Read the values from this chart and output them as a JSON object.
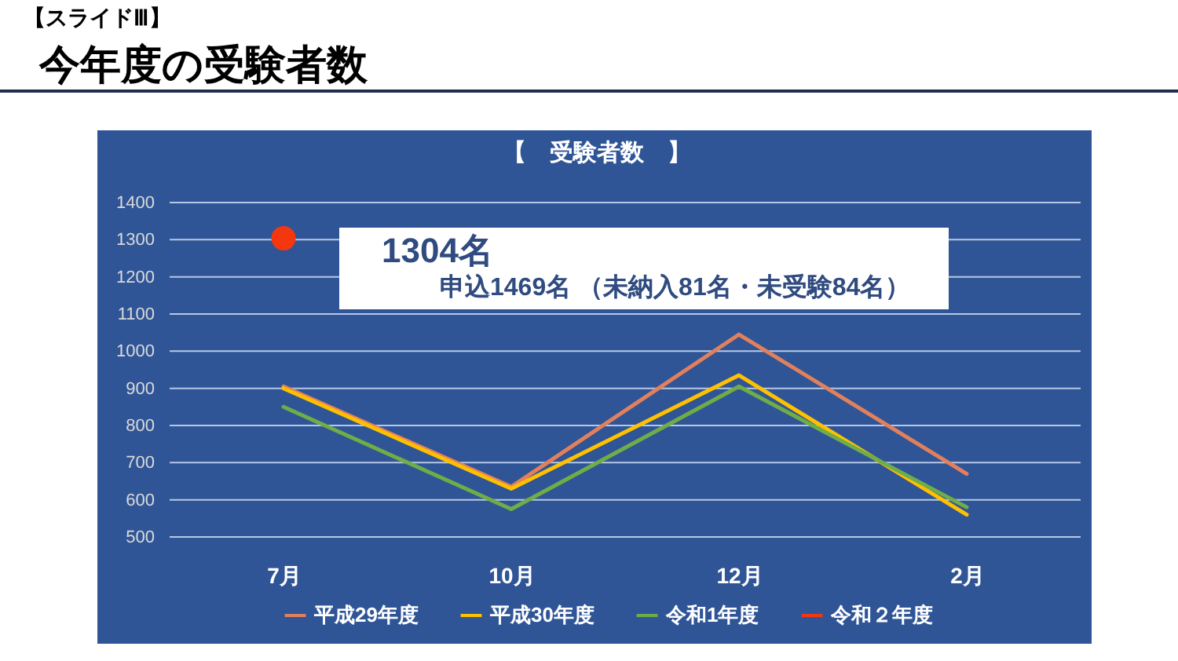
{
  "chart_data": {
    "type": "line",
    "title": "今年度の受験者数",
    "subtitle": "【　受験者数　】",
    "annotations": [
      "【スライドⅢ】",
      "1304名",
      "申込1469名 （未納入81名・未受験84名）"
    ],
    "categories": [
      "7月",
      "10月",
      "12月",
      "2月"
    ],
    "series": [
      {
        "name": "平成29年度",
        "color": "#e2805c",
        "values": [
          905,
          635,
          1045,
          670
        ]
      },
      {
        "name": "平成30年度",
        "color": "#ffc000",
        "values": [
          900,
          630,
          935,
          560
        ]
      },
      {
        "name": "令和1年度",
        "color": "#70ad47",
        "values": [
          850,
          575,
          905,
          580
        ]
      },
      {
        "name": "令和２年度",
        "type": "scatter",
        "marker": "circle",
        "color": "#f4370f",
        "values": [
          1304,
          null,
          null,
          null
        ]
      }
    ],
    "ylim": [
      500,
      1400
    ],
    "yticks": [
      500,
      600,
      700,
      800,
      900,
      1000,
      1100,
      1200,
      1300,
      1400
    ],
    "grid": "y",
    "legend": "bottom"
  }
}
